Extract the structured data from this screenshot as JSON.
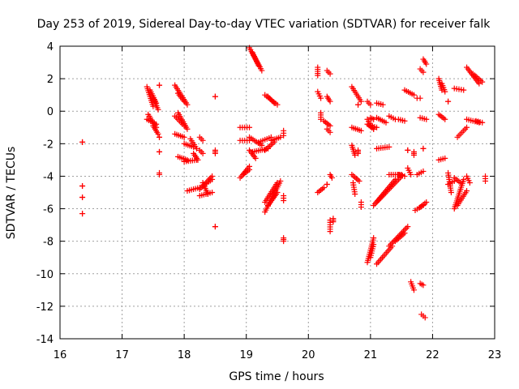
{
  "chart_data": {
    "type": "scatter",
    "title": "Day 253 of 2019, Sidereal Day-to-day VTEC variation (SDTVAR) for receiver falk",
    "xlabel": "GPS time / hours",
    "ylabel": "SDTVAR / TECUs",
    "xlim": [
      16,
      23
    ],
    "ylim": [
      -14,
      4
    ],
    "xticks": [
      "16",
      "17",
      "18",
      "19",
      "20",
      "21",
      "22",
      "23"
    ],
    "yticks": [
      "4",
      "2",
      "0",
      "-2",
      "-4",
      "-6",
      "-8",
      "-10",
      "-12",
      "-14"
    ],
    "grid": true,
    "marker": "plus",
    "color": "#ff0000",
    "arcs": [
      [
        16.36,
        -1.9,
        16.36,
        -1.9
      ],
      [
        16.36,
        -4.6,
        16.36,
        -4.6
      ],
      [
        16.36,
        -5.3,
        16.36,
        -5.3
      ],
      [
        16.36,
        -6.3,
        16.36,
        -6.3
      ],
      [
        17.4,
        1.5,
        17.5,
        0.3
      ],
      [
        17.45,
        1.3,
        17.55,
        0.5
      ],
      [
        17.5,
        0.8,
        17.58,
        0.1
      ],
      [
        17.6,
        1.6,
        17.6,
        1.6
      ],
      [
        17.4,
        -0.5,
        17.55,
        -0.8
      ],
      [
        17.42,
        -0.2,
        17.55,
        -1.0
      ],
      [
        17.5,
        -0.9,
        17.58,
        -1.4
      ],
      [
        17.6,
        -1.6,
        17.6,
        -1.6
      ],
      [
        17.6,
        -2.5,
        17.6,
        -2.5
      ],
      [
        17.6,
        -3.8,
        17.6,
        -3.9
      ],
      [
        17.85,
        1.6,
        18.05,
        0.4
      ],
      [
        17.9,
        1.1,
        18.0,
        0.6
      ],
      [
        17.85,
        -0.3,
        18.0,
        -0.9
      ],
      [
        17.9,
        -0.1,
        18.05,
        -1.1
      ],
      [
        17.85,
        -1.4,
        18.0,
        -1.6
      ],
      [
        18.0,
        -2.0,
        18.15,
        -2.2
      ],
      [
        18.1,
        -1.7,
        18.2,
        -2.3
      ],
      [
        18.25,
        -1.6,
        18.3,
        -1.8
      ],
      [
        18.25,
        -2.4,
        18.3,
        -2.6
      ],
      [
        17.9,
        -2.8,
        18.05,
        -3.0
      ],
      [
        18.0,
        -3.1,
        18.2,
        -3.0
      ],
      [
        18.15,
        -2.6,
        18.22,
        -3.0
      ],
      [
        18.05,
        -4.9,
        18.25,
        -4.7
      ],
      [
        18.25,
        -4.8,
        18.45,
        -4.0
      ],
      [
        18.3,
        -4.6,
        18.45,
        -4.2
      ],
      [
        18.25,
        -5.2,
        18.45,
        -5.0
      ],
      [
        18.3,
        -4.4,
        18.38,
        -5.1
      ],
      [
        18.5,
        0.9,
        18.5,
        0.9
      ],
      [
        18.5,
        -2.4,
        18.5,
        -2.6
      ],
      [
        18.5,
        -7.1,
        18.5,
        -7.1
      ],
      [
        19.05,
        3.9,
        19.25,
        2.5
      ],
      [
        19.1,
        3.6,
        19.2,
        2.8
      ],
      [
        19.3,
        1.0,
        19.5,
        0.4
      ],
      [
        19.35,
        0.9,
        19.45,
        0.5
      ],
      [
        18.9,
        -1.0,
        19.05,
        -1.0
      ],
      [
        18.9,
        -1.8,
        19.05,
        -1.8
      ],
      [
        19.05,
        -1.6,
        19.25,
        -2.1
      ],
      [
        19.1,
        -2.5,
        19.35,
        -2.3
      ],
      [
        19.2,
        -1.9,
        19.4,
        -1.6
      ],
      [
        19.3,
        -2.4,
        19.45,
        -1.9
      ],
      [
        19.4,
        -1.8,
        19.55,
        -1.6
      ],
      [
        19.6,
        -1.2,
        19.6,
        -1.5
      ],
      [
        18.9,
        -4.1,
        19.05,
        -3.4
      ],
      [
        18.95,
        -3.9,
        19.05,
        -3.6
      ],
      [
        19.05,
        -2.4,
        19.15,
        -2.9
      ],
      [
        19.3,
        -6.2,
        19.55,
        -4.3
      ],
      [
        19.3,
        -5.6,
        19.5,
        -4.4
      ],
      [
        19.35,
        -5.8,
        19.5,
        -5.0
      ],
      [
        19.6,
        -5.2,
        19.6,
        -5.5
      ],
      [
        19.6,
        -7.8,
        19.6,
        -8.0
      ],
      [
        20.15,
        2.7,
        20.15,
        2.2
      ],
      [
        20.15,
        1.2,
        20.2,
        0.8
      ],
      [
        20.2,
        -0.1,
        20.2,
        -0.5
      ],
      [
        20.3,
        2.5,
        20.35,
        2.3
      ],
      [
        20.3,
        0.9,
        20.35,
        0.6
      ],
      [
        20.25,
        -0.6,
        20.35,
        -0.9
      ],
      [
        20.3,
        -1.1,
        20.35,
        -1.3
      ],
      [
        20.15,
        -5.0,
        20.25,
        -4.7
      ],
      [
        20.3,
        -4.5,
        20.3,
        -4.5
      ],
      [
        20.35,
        -3.9,
        20.38,
        -4.1
      ],
      [
        20.35,
        -6.7,
        20.35,
        -7.4
      ],
      [
        20.4,
        -6.6,
        20.4,
        -6.8
      ],
      [
        20.7,
        1.5,
        20.85,
        0.6
      ],
      [
        20.8,
        0.4,
        20.8,
        0.4
      ],
      [
        20.7,
        -1.0,
        20.85,
        -1.2
      ],
      [
        20.7,
        -2.1,
        20.75,
        -2.7
      ],
      [
        20.8,
        -2.4,
        20.8,
        -2.6
      ],
      [
        20.7,
        -3.9,
        20.82,
        -4.3
      ],
      [
        20.72,
        -4.4,
        20.75,
        -5.1
      ],
      [
        20.85,
        -5.6,
        20.85,
        -5.9
      ],
      [
        20.95,
        0.6,
        21.0,
        0.4
      ],
      [
        20.95,
        -0.5,
        21.05,
        -1.1
      ],
      [
        21.0,
        -0.9,
        21.1,
        -1.0
      ],
      [
        20.95,
        -0.8,
        21.05,
        -1.1
      ],
      [
        21.0,
        -0.4,
        21.05,
        -0.5
      ],
      [
        21.1,
        0.5,
        21.2,
        0.4
      ],
      [
        21.1,
        -0.4,
        21.25,
        -0.7
      ],
      [
        21.3,
        -0.3,
        21.4,
        -0.5
      ],
      [
        21.45,
        -0.5,
        21.55,
        -0.6
      ],
      [
        21.1,
        -2.3,
        21.3,
        -2.2
      ],
      [
        21.3,
        -3.9,
        21.5,
        -3.9
      ],
      [
        21.05,
        -5.8,
        21.4,
        -4.2
      ],
      [
        21.1,
        -5.6,
        21.5,
        -4.0
      ],
      [
        21.45,
        -3.9,
        21.55,
        -4.0
      ],
      [
        20.95,
        -9.3,
        21.05,
        -7.8
      ],
      [
        21.0,
        -9.0,
        21.05,
        -8.2
      ],
      [
        21.1,
        -9.4,
        21.35,
        -8.3
      ],
      [
        21.3,
        -8.3,
        21.6,
        -7.1
      ],
      [
        21.4,
        -8.0,
        21.55,
        -7.5
      ],
      [
        21.55,
        1.3,
        21.7,
        1.0
      ],
      [
        21.6,
        -2.4,
        21.6,
        -2.4
      ],
      [
        21.7,
        -2.5,
        21.7,
        -2.7
      ],
      [
        21.6,
        -3.5,
        21.65,
        -3.9
      ],
      [
        21.75,
        -3.9,
        21.85,
        -3.7
      ],
      [
        21.8,
        2.6,
        21.85,
        2.4
      ],
      [
        21.85,
        3.2,
        21.9,
        2.9
      ],
      [
        21.75,
        0.8,
        21.8,
        0.8
      ],
      [
        21.8,
        -0.4,
        21.9,
        -0.5
      ],
      [
        21.85,
        -2.3,
        21.85,
        -2.3
      ],
      [
        21.8,
        -5.9,
        21.9,
        -5.6
      ],
      [
        21.72,
        -6.1,
        21.85,
        -5.8
      ],
      [
        21.65,
        -10.5,
        21.7,
        -11.0
      ],
      [
        21.8,
        -10.6,
        21.85,
        -10.7
      ],
      [
        21.82,
        -12.5,
        21.88,
        -12.7
      ],
      [
        22.1,
        2.0,
        22.15,
        1.3
      ],
      [
        22.15,
        1.7,
        22.2,
        1.2
      ],
      [
        22.1,
        -0.2,
        22.2,
        -0.5
      ],
      [
        22.1,
        -3.0,
        22.2,
        -2.9
      ],
      [
        22.25,
        0.6,
        22.25,
        0.6
      ],
      [
        22.25,
        -3.8,
        22.3,
        -5.0
      ],
      [
        22.25,
        -4.5,
        22.35,
        -4.3
      ],
      [
        22.35,
        -4.1,
        22.45,
        -4.4
      ],
      [
        22.35,
        -6.0,
        22.5,
        -4.2
      ],
      [
        22.4,
        -5.8,
        22.55,
        -4.9
      ],
      [
        22.35,
        1.4,
        22.5,
        1.3
      ],
      [
        22.4,
        -1.6,
        22.55,
        -1.0
      ],
      [
        22.55,
        2.7,
        22.75,
        1.7
      ],
      [
        22.65,
        2.3,
        22.8,
        1.8
      ],
      [
        22.55,
        -0.5,
        22.75,
        -0.7
      ],
      [
        22.7,
        -0.6,
        22.8,
        -0.7
      ],
      [
        22.55,
        -4.0,
        22.6,
        -4.4
      ],
      [
        22.85,
        -4.0,
        22.85,
        -4.3
      ]
    ]
  }
}
